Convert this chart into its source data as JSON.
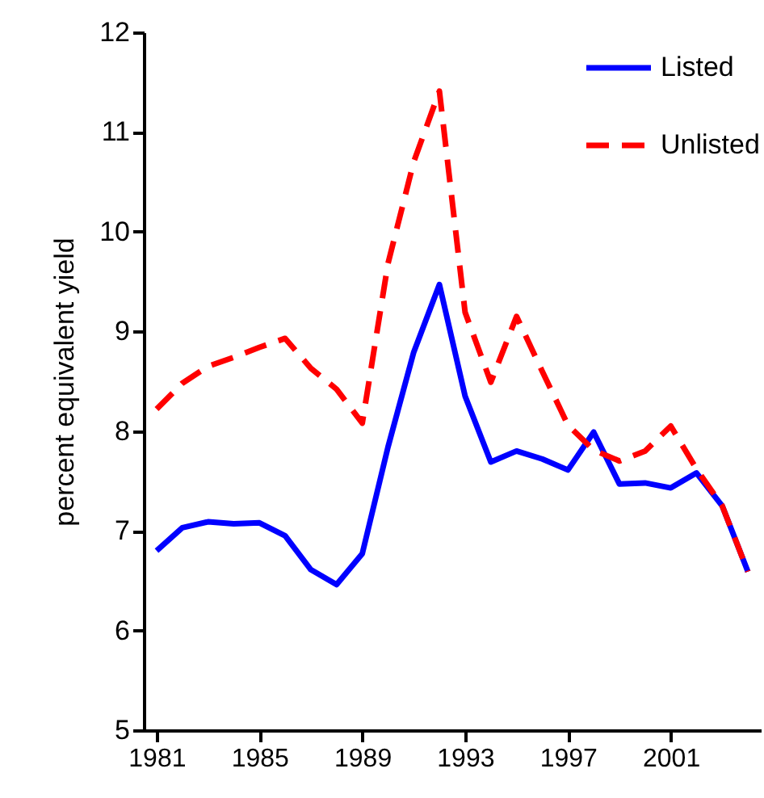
{
  "chart_data": {
    "type": "line",
    "ylabel": "percent equivalent yield",
    "x": [
      1981,
      1982,
      1983,
      1984,
      1985,
      1986,
      1987,
      1988,
      1989,
      1990,
      1991,
      1992,
      1993,
      1994,
      1995,
      1996,
      1997,
      1998,
      1999,
      2000,
      2001,
      2002,
      2003,
      2004
    ],
    "series": [
      {
        "name": "Listed",
        "color": "#0000ff",
        "line_style": "solid",
        "values": [
          6.8,
          7.03,
          7.09,
          7.07,
          7.08,
          6.95,
          6.61,
          6.46,
          6.77,
          7.84,
          8.79,
          9.47,
          8.35,
          7.69,
          7.8,
          7.72,
          7.61,
          7.99,
          7.47,
          7.48,
          7.43,
          7.58,
          7.25,
          6.59
        ]
      },
      {
        "name": "Unlisted",
        "color": "#ff0000",
        "line_style": "dashed",
        "values": [
          8.22,
          8.48,
          8.65,
          8.74,
          8.84,
          8.93,
          8.63,
          8.42,
          8.08,
          9.68,
          10.7,
          11.41,
          9.19,
          8.49,
          9.15,
          8.6,
          8.06,
          7.81,
          7.7,
          7.8,
          8.05,
          7.62,
          7.25,
          6.59
        ]
      }
    ],
    "xlim": [
      1980.5,
      2004.5
    ],
    "xticks": [
      1981,
      1985,
      1989,
      1993,
      1997,
      2001
    ],
    "ylim": [
      5,
      12
    ],
    "yticks": [
      5,
      6,
      7,
      8,
      9,
      10,
      11,
      12
    ],
    "grid": false,
    "legend": "top right",
    "marker": "none"
  }
}
